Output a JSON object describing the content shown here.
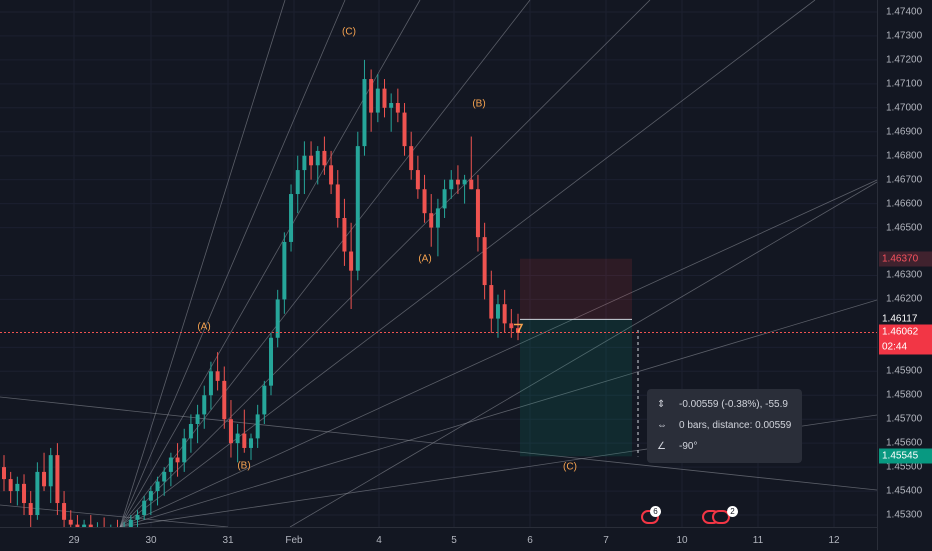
{
  "chart": {
    "symbol_pair_hidden": true,
    "colors": {
      "background": "#131722",
      "up": "#26a69a",
      "down": "#ef5350",
      "wave_label": "#f7a350",
      "fan_line": "#9598a1",
      "current_price_line": "#ef5350"
    }
  },
  "price_axis": {
    "ticks": [
      "1.47400",
      "1.47300",
      "1.47200",
      "1.47100",
      "1.47000",
      "1.46900",
      "1.46800",
      "1.46700",
      "1.46600",
      "1.46500",
      "1.46300",
      "1.46200",
      "1.46000",
      "1.45900",
      "1.45800",
      "1.45700",
      "1.45600",
      "1.45500",
      "1.45400",
      "1.45300"
    ],
    "labels": [
      {
        "text": "1.46370",
        "kind": "target",
        "color": "#f7525f"
      },
      {
        "text": "1.46117",
        "kind": "entry",
        "color": "#ffffff"
      },
      {
        "text": "1.46062",
        "kind": "last-price",
        "color": "#f23645"
      },
      {
        "text": "02:44",
        "kind": "countdown",
        "color": "#f23645"
      },
      {
        "text": "1.45545",
        "kind": "stop",
        "color": "#089981"
      }
    ]
  },
  "time_axis": {
    "ticks": [
      "29",
      "30",
      "31",
      "Feb",
      "4",
      "5",
      "6",
      "7",
      "10",
      "11",
      "12"
    ]
  },
  "wave_labels": [
    {
      "text": "(C)"
    },
    {
      "text": "(B)"
    },
    {
      "text": "(A)"
    },
    {
      "text": "(A)"
    },
    {
      "text": "(B)"
    },
    {
      "text": "(C)"
    }
  ],
  "measure_tooltip": {
    "price_change": "-0.00559 (-0.38%), -55.9",
    "bars_distance": "0 bars, distance: 0.00559",
    "angle": "-90°"
  },
  "event_flags": [
    {
      "icon": "economic-event-icon",
      "count": "6"
    },
    {
      "icon": "economic-event-icon",
      "count": "2"
    }
  ],
  "chart_data": {
    "type": "candlestick",
    "ylim": [
      1.4525,
      1.4745
    ],
    "x_ticks": [
      "29",
      "30",
      "31",
      "Feb",
      "4",
      "5",
      "6",
      "7",
      "10",
      "11",
      "12"
    ],
    "last_price": 1.46062,
    "position": {
      "entry": 1.46117,
      "target": 1.4637,
      "stop": 1.45545
    },
    "candles": [
      [
        1.455,
        1.4555,
        1.454,
        1.4545
      ],
      [
        1.4545,
        1.4548,
        1.4535,
        1.454
      ],
      [
        1.454,
        1.4546,
        1.4534,
        1.4543
      ],
      [
        1.4543,
        1.4547,
        1.453,
        1.4535
      ],
      [
        1.4535,
        1.454,
        1.4525,
        1.453
      ],
      [
        1.453,
        1.4552,
        1.4528,
        1.4548
      ],
      [
        1.4548,
        1.4556,
        1.454,
        1.4542
      ],
      [
        1.4542,
        1.4558,
        1.4535,
        1.4555
      ],
      [
        1.4555,
        1.456,
        1.453,
        1.4535
      ],
      [
        1.4535,
        1.454,
        1.4525,
        1.4528
      ],
      [
        1.4528,
        1.4532,
        1.4522,
        1.4526
      ],
      [
        1.4526,
        1.453,
        1.452,
        1.4524
      ],
      [
        1.4524,
        1.4528,
        1.452,
        1.4526
      ],
      [
        1.4526,
        1.453,
        1.4521,
        1.4523
      ],
      [
        1.4523,
        1.4527,
        1.452,
        1.4525
      ],
      [
        1.4525,
        1.4529,
        1.4521,
        1.4522
      ],
      [
        1.4522,
        1.4526,
        1.452,
        1.4524
      ],
      [
        1.4524,
        1.4528,
        1.4521,
        1.4523
      ],
      [
        1.4523,
        1.4527,
        1.452,
        1.4525
      ],
      [
        1.4525,
        1.453,
        1.4522,
        1.4528
      ],
      [
        1.4528,
        1.4532,
        1.4524,
        1.453
      ],
      [
        1.453,
        1.4538,
        1.4528,
        1.4536
      ],
      [
        1.4536,
        1.4542,
        1.453,
        1.454
      ],
      [
        1.454,
        1.4546,
        1.4534,
        1.4544
      ],
      [
        1.4544,
        1.455,
        1.4538,
        1.4548
      ],
      [
        1.4548,
        1.4556,
        1.4542,
        1.4554
      ],
      [
        1.4554,
        1.456,
        1.4546,
        1.4552
      ],
      [
        1.4552,
        1.4566,
        1.4548,
        1.4562
      ],
      [
        1.4562,
        1.4572,
        1.4556,
        1.4568
      ],
      [
        1.4568,
        1.4576,
        1.456,
        1.4572
      ],
      [
        1.4572,
        1.4584,
        1.4566,
        1.458
      ],
      [
        1.458,
        1.4594,
        1.4574,
        1.459
      ],
      [
        1.459,
        1.4598,
        1.4582,
        1.4586
      ],
      [
        1.4586,
        1.4592,
        1.4566,
        1.457
      ],
      [
        1.457,
        1.4578,
        1.4554,
        1.456
      ],
      [
        1.456,
        1.4568,
        1.4552,
        1.4564
      ],
      [
        1.4564,
        1.4574,
        1.4556,
        1.4558
      ],
      [
        1.4558,
        1.4564,
        1.4553,
        1.4562
      ],
      [
        1.4562,
        1.4576,
        1.4558,
        1.4572
      ],
      [
        1.4572,
        1.4586,
        1.4568,
        1.4584
      ],
      [
        1.4584,
        1.4606,
        1.458,
        1.4604
      ],
      [
        1.4604,
        1.4624,
        1.46,
        1.462
      ],
      [
        1.462,
        1.4648,
        1.4614,
        1.4644
      ],
      [
        1.4644,
        1.4668,
        1.464,
        1.4664
      ],
      [
        1.4664,
        1.468,
        1.4656,
        1.4674
      ],
      [
        1.4674,
        1.4686,
        1.4664,
        1.468
      ],
      [
        1.468,
        1.4686,
        1.467,
        1.4676
      ],
      [
        1.4676,
        1.4684,
        1.4668,
        1.4682
      ],
      [
        1.4682,
        1.4688,
        1.4672,
        1.4676
      ],
      [
        1.4676,
        1.4682,
        1.4664,
        1.4668
      ],
      [
        1.4668,
        1.4674,
        1.465,
        1.4654
      ],
      [
        1.4654,
        1.4662,
        1.4634,
        1.464
      ],
      [
        1.464,
        1.4652,
        1.4616,
        1.4632
      ],
      [
        1.4632,
        1.469,
        1.4628,
        1.4684
      ],
      [
        1.4684,
        1.472,
        1.468,
        1.4712
      ],
      [
        1.4712,
        1.4716,
        1.469,
        1.4698
      ],
      [
        1.4698,
        1.4714,
        1.4694,
        1.4708
      ],
      [
        1.4708,
        1.4712,
        1.4696,
        1.47
      ],
      [
        1.47,
        1.4706,
        1.469,
        1.4702
      ],
      [
        1.4702,
        1.4708,
        1.4694,
        1.4698
      ],
      [
        1.4698,
        1.4702,
        1.468,
        1.4684
      ],
      [
        1.4684,
        1.469,
        1.467,
        1.4674
      ],
      [
        1.4674,
        1.468,
        1.4662,
        1.4666
      ],
      [
        1.4666,
        1.4672,
        1.4652,
        1.4656
      ],
      [
        1.4656,
        1.4664,
        1.4642,
        1.465
      ],
      [
        1.465,
        1.4662,
        1.4638,
        1.4658
      ],
      [
        1.4658,
        1.467,
        1.4654,
        1.4666
      ],
      [
        1.4666,
        1.4674,
        1.4662,
        1.467
      ],
      [
        1.467,
        1.4676,
        1.4664,
        1.4668
      ],
      [
        1.4668,
        1.4672,
        1.466,
        1.467
      ],
      [
        1.467,
        1.4688,
        1.4666,
        1.4666
      ],
      [
        1.4666,
        1.4672,
        1.464,
        1.4646
      ],
      [
        1.4646,
        1.4652,
        1.462,
        1.4626
      ],
      [
        1.4626,
        1.4632,
        1.4606,
        1.4612
      ],
      [
        1.4612,
        1.4622,
        1.4604,
        1.4618
      ],
      [
        1.4618,
        1.4624,
        1.4606,
        1.461
      ],
      [
        1.461,
        1.4616,
        1.4604,
        1.4608
      ],
      [
        1.4608,
        1.4614,
        1.4603,
        1.4606
      ]
    ]
  }
}
